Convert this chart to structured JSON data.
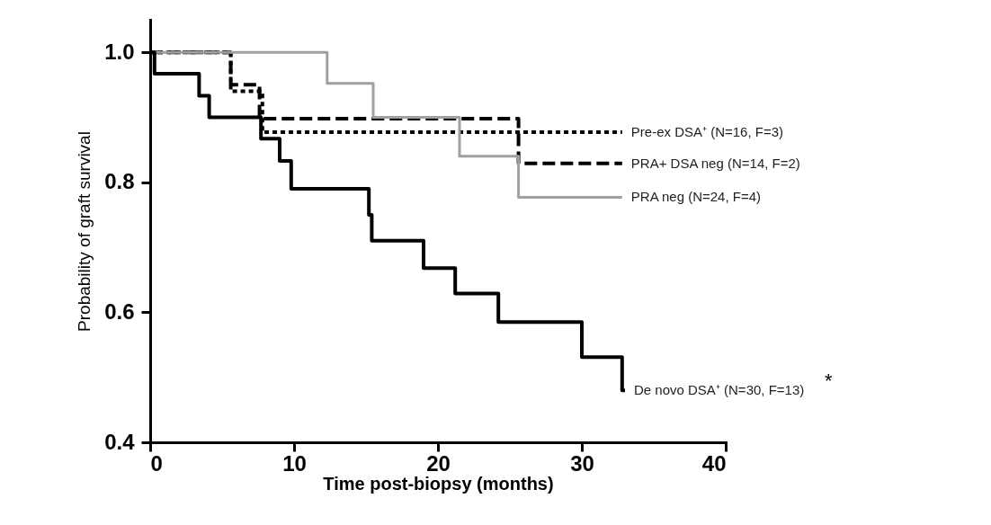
{
  "chart_data": {
    "type": "step",
    "xlabel": "Time post-biopsy (months)",
    "ylabel": "Probability of graft survival",
    "xlim": [
      0,
      40
    ],
    "xticks": [
      0,
      10,
      20,
      30,
      40
    ],
    "ylim": [
      0.4,
      1.05
    ],
    "yticks": [
      0.4,
      0.6,
      0.8,
      {
        "value": 1,
        "label": "1.0"
      }
    ],
    "grid": false,
    "legend": false,
    "marker": "none",
    "series": [
      {
        "name": "Pre-ex DSA⁺ (N=16, F=3)",
        "color": "#000000",
        "line_style": "dotted",
        "x": [
          0,
          5.6,
          7.8,
          32.8
        ],
        "values": [
          1.0,
          0.94,
          0.877,
          0.877
        ]
      },
      {
        "name": "PRA+ DSA neg (N=14, F=2)",
        "color": "#000000",
        "line_style": "dashed",
        "x": [
          0,
          5.6,
          7.6,
          25.6,
          32.8
        ],
        "values": [
          1.0,
          0.95,
          0.898,
          0.829,
          0.829
        ]
      },
      {
        "name": "PRA neg (N=24, F=4)",
        "color": "#a0a0a0",
        "line_style": "solid",
        "x": [
          0,
          12.3,
          15.5,
          21.5,
          25.6,
          32.8
        ],
        "values": [
          1.0,
          0.952,
          0.9,
          0.84,
          0.777,
          0.777
        ]
      },
      {
        "name": "De novo DSA⁺ (N=30, F=13)",
        "color": "#000000",
        "line_style": "solid",
        "x": [
          0,
          0.3,
          3.4,
          4.1,
          7.7,
          9.0,
          9.8,
          15.2,
          15.4,
          19.0,
          21.2,
          24.2,
          30.0,
          32.8,
          33.0
        ],
        "values": [
          1.0,
          0.967,
          0.933,
          0.9,
          0.867,
          0.833,
          0.79,
          0.75,
          0.71,
          0.668,
          0.629,
          0.585,
          0.531,
          0.48,
          0.48
        ]
      }
    ],
    "annotations": [
      "*"
    ]
  }
}
